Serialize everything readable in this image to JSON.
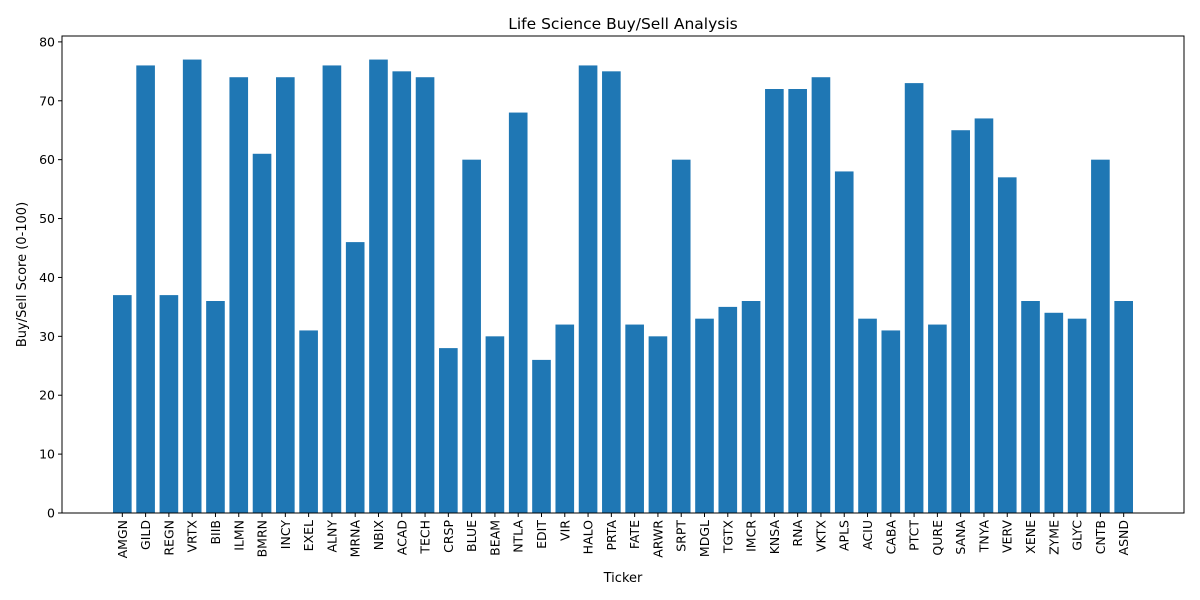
{
  "chart_data": {
    "type": "bar",
    "title": "Life Science Buy/Sell Analysis",
    "xlabel": "Ticker",
    "ylabel": "Buy/Sell Score (0-100)",
    "ylim": [
      0,
      81
    ],
    "yticks": [
      0,
      10,
      20,
      30,
      40,
      50,
      60,
      70,
      80
    ],
    "grid": false,
    "bar_color": "#1f77b4",
    "categories": [
      "AMGN",
      "GILD",
      "REGN",
      "VRTX",
      "BIIB",
      "ILMN",
      "BMRN",
      "INCY",
      "EXEL",
      "ALNY",
      "MRNA",
      "NBIX",
      "ACAD",
      "TECH",
      "CRSP",
      "BLUE",
      "BEAM",
      "NTLA",
      "EDIT",
      "VIR",
      "HALO",
      "PRTA",
      "FATE",
      "ARWR",
      "SRPT",
      "MDGL",
      "TGTX",
      "IMCR",
      "KNSA",
      "RNA",
      "VKTX",
      "APLS",
      "ACIU",
      "CABA",
      "PTCT",
      "QURE",
      "SANA",
      "TNYA",
      "VERV",
      "XENE",
      "ZYME",
      "GLYC",
      "CNTB",
      "ASND"
    ],
    "values": [
      37,
      76,
      37,
      77,
      36,
      74,
      61,
      74,
      31,
      76,
      46,
      77,
      75,
      74,
      28,
      60,
      30,
      68,
      26,
      32,
      76,
      75,
      32,
      30,
      60,
      33,
      35,
      36,
      72,
      72,
      74,
      58,
      33,
      31,
      73,
      32,
      65,
      67,
      57,
      36,
      34,
      33,
      60,
      36
    ]
  }
}
